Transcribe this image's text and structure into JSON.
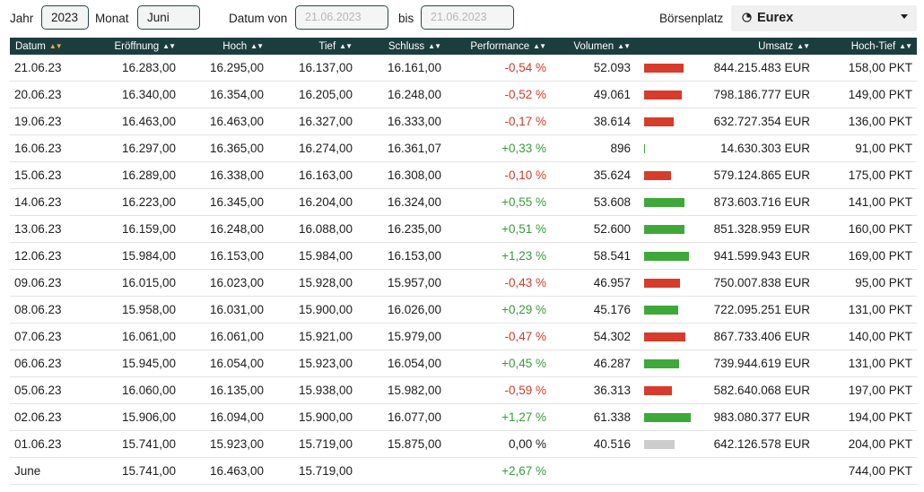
{
  "filters": {
    "year_label": "Jahr",
    "year_value": "2023",
    "month_label": "Monat",
    "month_value": "Juni",
    "date_from_label": "Datum von",
    "date_from_value": "21.06.2023",
    "date_to_label": "bis",
    "date_to_value": "21.06.2023",
    "exchange_label": "Börsenplatz",
    "exchange_value": "Eurex",
    "exchange_icon": "clock-icon"
  },
  "table": {
    "headers": [
      "Datum",
      "Eröffnung",
      "Hoch",
      "Tief",
      "Schluss",
      "Performance",
      "Volumen",
      "",
      "Umsatz",
      "Hoch-Tief"
    ],
    "rows": [
      {
        "date": "21.06.23",
        "open": "16.283,00",
        "high": "16.295,00",
        "low": "16.137,00",
        "close": "16.161,00",
        "perf": "-0,54 %",
        "dir": "neg",
        "volume": "52.093",
        "vol_raw": 52093,
        "turnover": "844.215.483 EUR",
        "range": "158,00 PKT"
      },
      {
        "date": "20.06.23",
        "open": "16.340,00",
        "high": "16.354,00",
        "low": "16.205,00",
        "close": "16.248,00",
        "perf": "-0,52 %",
        "dir": "neg",
        "volume": "49.061",
        "vol_raw": 49061,
        "turnover": "798.186.777 EUR",
        "range": "149,00 PKT"
      },
      {
        "date": "19.06.23",
        "open": "16.463,00",
        "high": "16.463,00",
        "low": "16.327,00",
        "close": "16.333,00",
        "perf": "-0,17 %",
        "dir": "neg",
        "volume": "38.614",
        "vol_raw": 38614,
        "turnover": "632.727.354 EUR",
        "range": "136,00 PKT"
      },
      {
        "date": "16.06.23",
        "open": "16.297,00",
        "high": "16.365,00",
        "low": "16.274,00",
        "close": "16.361,07",
        "perf": "+0,33 %",
        "dir": "pos",
        "volume": "896",
        "vol_raw": 896,
        "turnover": "14.630.303 EUR",
        "range": "91,00 PKT"
      },
      {
        "date": "15.06.23",
        "open": "16.289,00",
        "high": "16.338,00",
        "low": "16.163,00",
        "close": "16.308,00",
        "perf": "-0,10 %",
        "dir": "neg",
        "volume": "35.624",
        "vol_raw": 35624,
        "turnover": "579.124.865 EUR",
        "range": "175,00 PKT"
      },
      {
        "date": "14.06.23",
        "open": "16.223,00",
        "high": "16.345,00",
        "low": "16.204,00",
        "close": "16.324,00",
        "perf": "+0,55 %",
        "dir": "pos",
        "volume": "53.608",
        "vol_raw": 53608,
        "turnover": "873.603.716 EUR",
        "range": "141,00 PKT"
      },
      {
        "date": "13.06.23",
        "open": "16.159,00",
        "high": "16.248,00",
        "low": "16.088,00",
        "close": "16.235,00",
        "perf": "+0,51 %",
        "dir": "pos",
        "volume": "52.600",
        "vol_raw": 52600,
        "turnover": "851.328.959 EUR",
        "range": "160,00 PKT"
      },
      {
        "date": "12.06.23",
        "open": "15.984,00",
        "high": "16.153,00",
        "low": "15.984,00",
        "close": "16.153,00",
        "perf": "+1,23 %",
        "dir": "pos",
        "volume": "58.541",
        "vol_raw": 58541,
        "turnover": "941.599.943 EUR",
        "range": "169,00 PKT"
      },
      {
        "date": "09.06.23",
        "open": "16.015,00",
        "high": "16.023,00",
        "low": "15.928,00",
        "close": "15.957,00",
        "perf": "-0,43 %",
        "dir": "neg",
        "volume": "46.957",
        "vol_raw": 46957,
        "turnover": "750.007.838 EUR",
        "range": "95,00 PKT"
      },
      {
        "date": "08.06.23",
        "open": "15.958,00",
        "high": "16.031,00",
        "low": "15.900,00",
        "close": "16.026,00",
        "perf": "+0,29 %",
        "dir": "pos",
        "volume": "45.176",
        "vol_raw": 45176,
        "turnover": "722.095.251 EUR",
        "range": "131,00 PKT"
      },
      {
        "date": "07.06.23",
        "open": "16.061,00",
        "high": "16.061,00",
        "low": "15.921,00",
        "close": "15.979,00",
        "perf": "-0,47 %",
        "dir": "neg",
        "volume": "54.302",
        "vol_raw": 54302,
        "turnover": "867.733.406 EUR",
        "range": "140,00 PKT"
      },
      {
        "date": "06.06.23",
        "open": "15.945,00",
        "high": "16.054,00",
        "low": "15.923,00",
        "close": "16.054,00",
        "perf": "+0,45 %",
        "dir": "pos",
        "volume": "46.287",
        "vol_raw": 46287,
        "turnover": "739.944.619 EUR",
        "range": "131,00 PKT"
      },
      {
        "date": "05.06.23",
        "open": "16.060,00",
        "high": "16.135,00",
        "low": "15.938,00",
        "close": "15.982,00",
        "perf": "-0,59 %",
        "dir": "neg",
        "volume": "36.313",
        "vol_raw": 36313,
        "turnover": "582.640.068 EUR",
        "range": "197,00 PKT"
      },
      {
        "date": "02.06.23",
        "open": "15.906,00",
        "high": "16.094,00",
        "low": "15.900,00",
        "close": "16.077,00",
        "perf": "+1,27 %",
        "dir": "pos",
        "volume": "61.338",
        "vol_raw": 61338,
        "turnover": "983.080.377 EUR",
        "range": "194,00 PKT"
      },
      {
        "date": "01.06.23",
        "open": "15.741,00",
        "high": "15.923,00",
        "low": "15.719,00",
        "close": "15.875,00",
        "perf": "0,00 %",
        "dir": "zero",
        "volume": "40.516",
        "vol_raw": 40516,
        "turnover": "642.126.578 EUR",
        "range": "204,00 PKT"
      }
    ],
    "summary": {
      "date": "June",
      "open": "15.741,00",
      "high": "16.463,00",
      "low": "15.719,00",
      "close": "",
      "perf": "+2,67 %",
      "dir": "pos",
      "volume": "",
      "turnover": "",
      "range": "744,00 PKT"
    }
  },
  "colors": {
    "header_bg": "#1c3d3d",
    "negative": "#d13a2a",
    "positive": "#3a9a3a",
    "sort_active": "#e8b040"
  }
}
